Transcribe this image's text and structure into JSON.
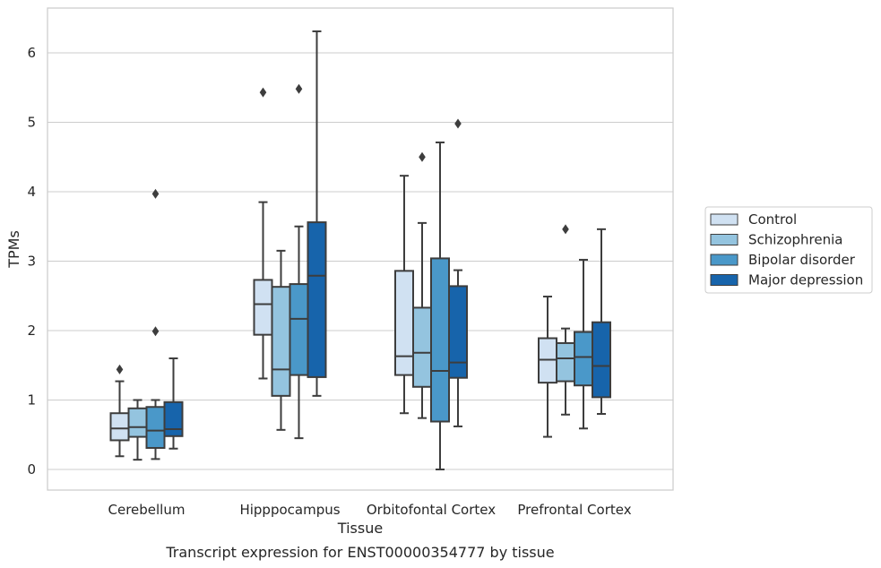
{
  "chart_data": {
    "type": "box",
    "caption": "Transcript expression for ENST00000354777 by tissue",
    "xlabel": "Tissue",
    "ylabel": "TPMs",
    "ylim": [
      -0.3,
      6.6
    ],
    "yticks": [
      0,
      1,
      2,
      3,
      4,
      5,
      6
    ],
    "grid": true,
    "legend_position": "right",
    "categories": [
      "Cerebellum",
      "Hipppocampus",
      "Orbitofontal Cortex",
      "Prefrontal Cortex"
    ],
    "series": [
      {
        "name": "Control",
        "color": "#d0e1f2",
        "boxes": [
          {
            "whislo": 0.19,
            "q1": 0.42,
            "med": 0.59,
            "q3": 0.81,
            "whishi": 1.27,
            "fliers": [
              1.44
            ]
          },
          {
            "whislo": 1.31,
            "q1": 1.94,
            "med": 2.38,
            "q3": 2.73,
            "whishi": 3.85,
            "fliers": [
              5.43
            ]
          },
          {
            "whislo": 0.81,
            "q1": 1.36,
            "med": 1.63,
            "q3": 2.86,
            "whishi": 4.23,
            "fliers": []
          },
          {
            "whislo": 0.47,
            "q1": 1.25,
            "med": 1.58,
            "q3": 1.89,
            "whishi": 2.49,
            "fliers": []
          }
        ]
      },
      {
        "name": "Schizophrenia",
        "color": "#94c4df",
        "boxes": [
          {
            "whislo": 0.14,
            "q1": 0.47,
            "med": 0.61,
            "q3": 0.88,
            "whishi": 1.0,
            "fliers": []
          },
          {
            "whislo": 0.57,
            "q1": 1.06,
            "med": 1.44,
            "q3": 2.63,
            "whishi": 3.15,
            "fliers": []
          },
          {
            "whislo": 0.74,
            "q1": 1.19,
            "med": 1.68,
            "q3": 2.33,
            "whishi": 3.55,
            "fliers": [
              4.5
            ]
          },
          {
            "whislo": 0.79,
            "q1": 1.27,
            "med": 1.6,
            "q3": 1.82,
            "whishi": 2.03,
            "fliers": [
              3.46
            ]
          }
        ]
      },
      {
        "name": "Bipolar disorder",
        "color": "#4a98c9",
        "boxes": [
          {
            "whislo": 0.15,
            "q1": 0.31,
            "med": 0.56,
            "q3": 0.9,
            "whishi": 1.0,
            "fliers": [
              1.99,
              3.97
            ]
          },
          {
            "whislo": 0.45,
            "q1": 1.36,
            "med": 2.17,
            "q3": 2.67,
            "whishi": 3.5,
            "fliers": [
              5.48
            ]
          },
          {
            "whislo": 0.0,
            "q1": 0.69,
            "med": 1.42,
            "q3": 3.04,
            "whishi": 4.71,
            "fliers": []
          },
          {
            "whislo": 0.59,
            "q1": 1.21,
            "med": 1.62,
            "q3": 1.98,
            "whishi": 3.02,
            "fliers": []
          }
        ]
      },
      {
        "name": "Major depression",
        "color": "#1764ab",
        "boxes": [
          {
            "whislo": 0.3,
            "q1": 0.48,
            "med": 0.58,
            "q3": 0.97,
            "whishi": 1.6,
            "fliers": []
          },
          {
            "whislo": 1.06,
            "q1": 1.33,
            "med": 2.79,
            "q3": 3.56,
            "whishi": 6.31,
            "fliers": []
          },
          {
            "whislo": 0.62,
            "q1": 1.32,
            "med": 1.54,
            "q3": 2.64,
            "whishi": 2.87,
            "fliers": [
              4.98
            ]
          },
          {
            "whislo": 0.8,
            "q1": 1.04,
            "med": 1.49,
            "q3": 2.12,
            "whishi": 3.46,
            "fliers": []
          }
        ]
      }
    ]
  }
}
